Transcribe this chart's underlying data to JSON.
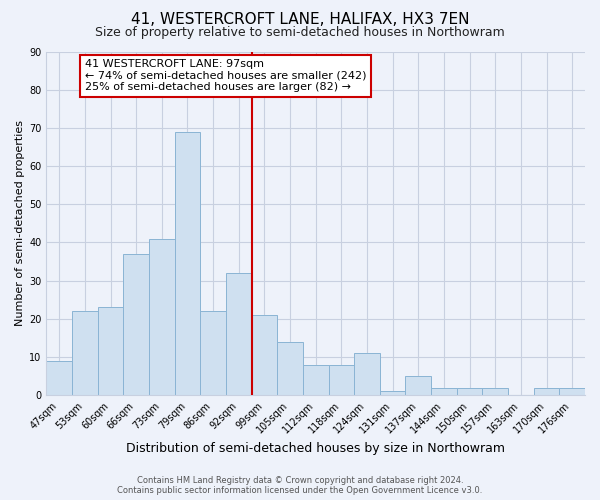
{
  "title": "41, WESTERCROFT LANE, HALIFAX, HX3 7EN",
  "subtitle": "Size of property relative to semi-detached houses in Northowram",
  "xlabel": "Distribution of semi-detached houses by size in Northowram",
  "ylabel": "Number of semi-detached properties",
  "bin_labels": [
    "47sqm",
    "53sqm",
    "60sqm",
    "66sqm",
    "73sqm",
    "79sqm",
    "86sqm",
    "92sqm",
    "99sqm",
    "105sqm",
    "112sqm",
    "118sqm",
    "124sqm",
    "131sqm",
    "137sqm",
    "144sqm",
    "150sqm",
    "157sqm",
    "163sqm",
    "170sqm",
    "176sqm"
  ],
  "bar_values": [
    9,
    22,
    23,
    37,
    41,
    69,
    22,
    32,
    21,
    14,
    8,
    8,
    11,
    1,
    5,
    2,
    2,
    2,
    0,
    2,
    2
  ],
  "bar_color": "#cfe0f0",
  "bar_edge_color": "#8ab4d4",
  "vline_x_index": 8,
  "vline_color": "#cc0000",
  "annotation_title": "41 WESTERCROFT LANE: 97sqm",
  "annotation_line1": "← 74% of semi-detached houses are smaller (242)",
  "annotation_line2": "25% of semi-detached houses are larger (82) →",
  "annotation_box_facecolor": "#ffffff",
  "annotation_box_edgecolor": "#cc0000",
  "ylim": [
    0,
    90
  ],
  "yticks": [
    0,
    10,
    20,
    30,
    40,
    50,
    60,
    70,
    80,
    90
  ],
  "background_color": "#eef2fa",
  "grid_color": "#c8d0e0",
  "title_fontsize": 11,
  "subtitle_fontsize": 9,
  "xlabel_fontsize": 9,
  "ylabel_fontsize": 8,
  "tick_fontsize": 7,
  "annotation_fontsize": 8,
  "footer_fontsize": 6,
  "footer_line1": "Contains HM Land Registry data © Crown copyright and database right 2024.",
  "footer_line2": "Contains public sector information licensed under the Open Government Licence v3.0."
}
